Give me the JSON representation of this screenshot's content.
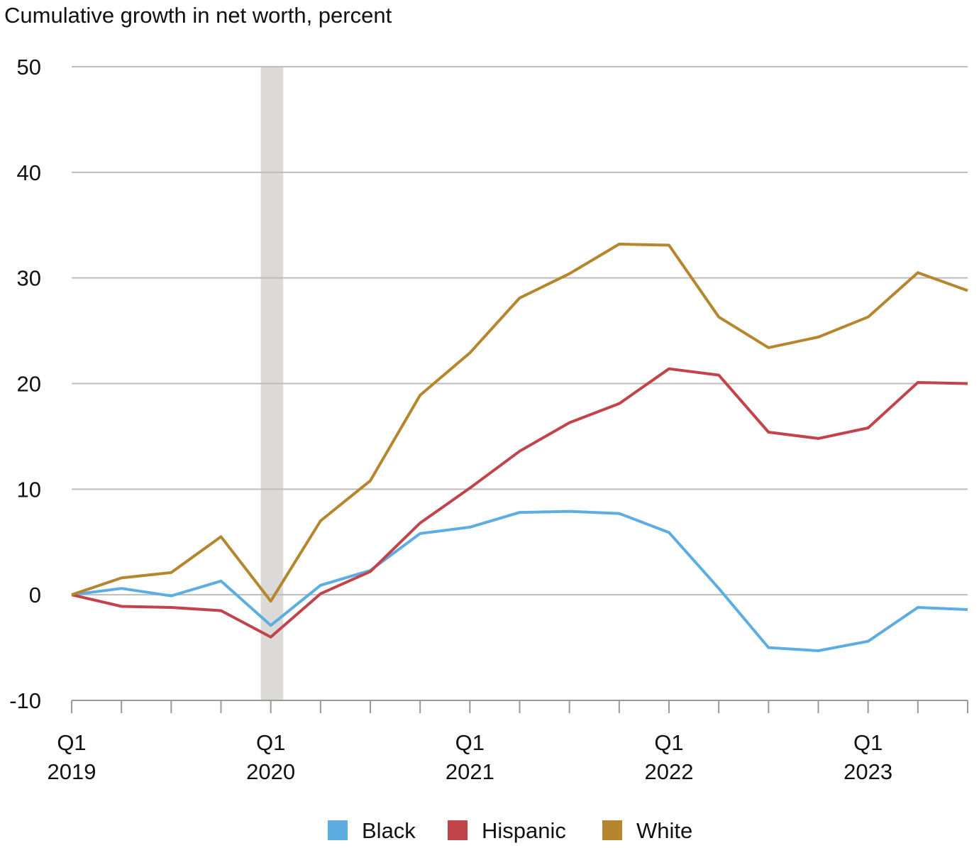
{
  "chart_data": {
    "type": "line",
    "title": "Cumulative growth in net worth, percent",
    "xlabel": "",
    "ylabel": "",
    "ylim": [
      -10,
      50
    ],
    "yticks": [
      -10,
      0,
      10,
      20,
      30,
      40,
      50
    ],
    "grid": true,
    "legend_position": "bottom",
    "x": [
      "2019Q1",
      "2019Q2",
      "2019Q3",
      "2019Q4",
      "2020Q1",
      "2020Q2",
      "2020Q3",
      "2020Q4",
      "2021Q1",
      "2021Q2",
      "2021Q3",
      "2021Q4",
      "2022Q1",
      "2022Q2",
      "2022Q3",
      "2022Q4",
      "2023Q1",
      "2023Q2",
      "2023Q3"
    ],
    "xtick_labels": [
      {
        "index": 0,
        "line1": "Q1",
        "line2": "2019"
      },
      {
        "index": 4,
        "line1": "Q1",
        "line2": "2020"
      },
      {
        "index": 8,
        "line1": "Q1",
        "line2": "2021"
      },
      {
        "index": 12,
        "line1": "Q1",
        "line2": "2022"
      },
      {
        "index": 16,
        "line1": "Q1",
        "line2": "2023"
      }
    ],
    "shaded_period": {
      "from": 3.8,
      "to": 4.25,
      "color": "#dcdad6"
    },
    "series": [
      {
        "name": "Black",
        "color": "#5dade2",
        "values": [
          0,
          0.6,
          -0.1,
          1.3,
          -2.9,
          0.9,
          2.3,
          5.8,
          6.4,
          7.8,
          7.9,
          7.7,
          5.9,
          0.6,
          -5.0,
          -5.3,
          -4.4,
          -1.2,
          -1.4
        ]
      },
      {
        "name": "Hispanic",
        "color": "#c0444a",
        "values": [
          0,
          -1.1,
          -1.2,
          -1.5,
          -4.0,
          0.1,
          2.2,
          6.8,
          10.1,
          13.6,
          16.3,
          18.1,
          21.4,
          20.8,
          15.4,
          14.8,
          15.8,
          20.1,
          20.0
        ]
      },
      {
        "name": "White",
        "color": "#b5862e",
        "values": [
          0,
          1.6,
          2.1,
          5.5,
          -0.6,
          7.0,
          10.8,
          18.9,
          22.9,
          28.1,
          30.4,
          33.2,
          33.1,
          26.3,
          23.4,
          24.4,
          26.3,
          30.5,
          28.8
        ]
      }
    ]
  }
}
